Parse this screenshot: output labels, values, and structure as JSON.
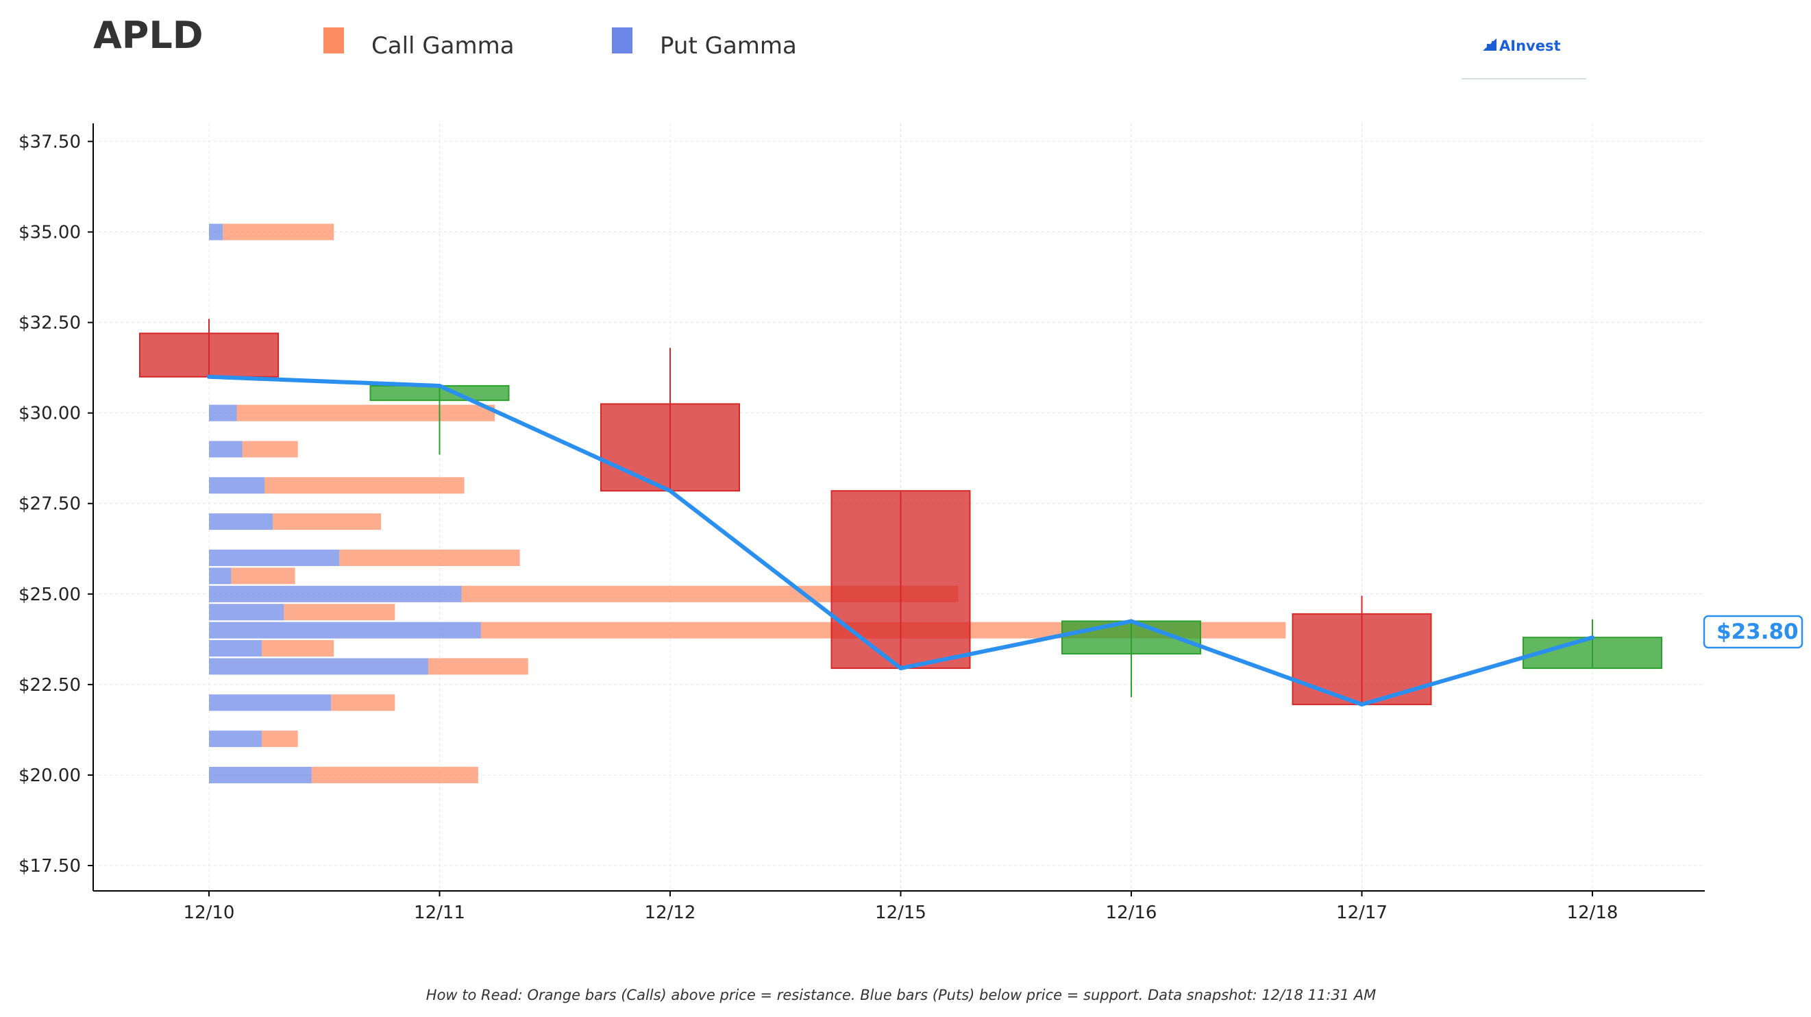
{
  "header": {
    "ticker": "APLD",
    "brand": "AInvest"
  },
  "legend": [
    {
      "label": "Call Gamma",
      "color": "#fc8d62"
    },
    {
      "label": "Put Gamma",
      "color": "#6b86e6"
    }
  ],
  "footnote": "How to Read: Orange bars (Calls) above price = resistance. Blue bars (Puts) below price = support. Data snapshot: 12/18 11:31 AM",
  "colors": {
    "call": "#fc8d62",
    "put": "#6b86e6",
    "up": "#2ca02c",
    "down": "#d62728",
    "price_line": "#2b8ff0"
  },
  "chart_data": {
    "type": "candlestick",
    "categories": [
      "12/10",
      "12/11",
      "12/12",
      "12/15",
      "12/16",
      "12/17",
      "12/18"
    ],
    "ylim": [
      16.8,
      38.0
    ],
    "yticks": [
      17.5,
      20.0,
      22.5,
      25.0,
      27.5,
      30.0,
      32.5,
      35.0,
      37.5
    ],
    "ytick_labels": [
      "$17.50",
      "$20.00",
      "$22.50",
      "$25.00",
      "$27.50",
      "$30.00",
      "$32.50",
      "$35.00",
      "$37.50"
    ],
    "grid": true,
    "candles": [
      {
        "date": "12/10",
        "open": 32.2,
        "high": 32.6,
        "low": 31.0,
        "close": 31.0
      },
      {
        "date": "12/11",
        "open": 30.35,
        "high": 30.75,
        "low": 28.85,
        "close": 30.75
      },
      {
        "date": "12/12",
        "open": 30.25,
        "high": 31.8,
        "low": 27.85,
        "close": 27.85
      },
      {
        "date": "12/15",
        "open": 27.85,
        "high": 27.85,
        "low": 22.95,
        "close": 22.95
      },
      {
        "date": "12/16",
        "open": 23.35,
        "high": 24.25,
        "low": 22.15,
        "close": 24.25
      },
      {
        "date": "12/17",
        "open": 24.45,
        "high": 24.95,
        "low": 21.95,
        "close": 21.95
      },
      {
        "date": "12/18",
        "open": 22.95,
        "high": 24.3,
        "low": 22.95,
        "close": 23.8
      }
    ],
    "close_line": [
      31.0,
      30.75,
      27.85,
      22.95,
      24.25,
      21.95,
      23.8
    ],
    "current_price": 23.8,
    "current_price_label": "$23.80",
    "gamma_bars": [
      {
        "strike": 35.0,
        "put": 0.05,
        "call": 0.4
      },
      {
        "strike": 30.0,
        "put": 0.1,
        "call": 0.93
      },
      {
        "strike": 29.0,
        "put": 0.12,
        "call": 0.2
      },
      {
        "strike": 28.0,
        "put": 0.2,
        "call": 0.72
      },
      {
        "strike": 27.0,
        "put": 0.23,
        "call": 0.39
      },
      {
        "strike": 26.0,
        "put": 0.47,
        "call": 0.65
      },
      {
        "strike": 25.5,
        "put": 0.08,
        "call": 0.23
      },
      {
        "strike": 25.0,
        "put": 0.91,
        "call": 1.79
      },
      {
        "strike": 24.5,
        "put": 0.27,
        "call": 0.4
      },
      {
        "strike": 24.0,
        "put": 0.98,
        "call": 2.9
      },
      {
        "strike": 23.5,
        "put": 0.19,
        "call": 0.26
      },
      {
        "strike": 23.0,
        "put": 0.79,
        "call": 0.36
      },
      {
        "strike": 22.0,
        "put": 0.44,
        "call": 0.23
      },
      {
        "strike": 21.0,
        "put": 0.19,
        "call": 0.13
      },
      {
        "strike": 20.0,
        "put": 0.37,
        "call": 0.6
      }
    ]
  }
}
